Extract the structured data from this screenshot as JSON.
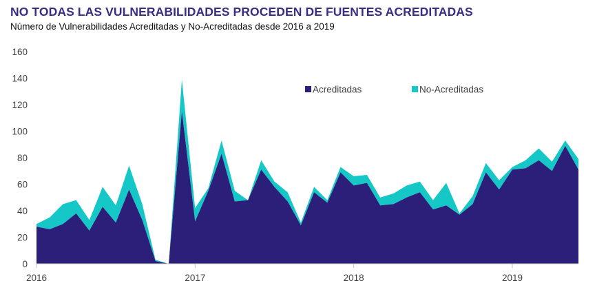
{
  "header": {
    "title": "NO TODAS LAS VULNERABILIDADES PROCEDEN DE FUENTES ACREDITADAS",
    "subtitle": "Número de Vulnerabilidades Acreditadas y No-Acreditadas desde 2016 a 2019"
  },
  "colors": {
    "accent": "#3a2d86",
    "acreditadas": "#2b1f7a",
    "no_acreditadas": "#16c7c7",
    "axis": "#bfbfbf",
    "text": "#404040"
  },
  "chart_data": {
    "type": "area",
    "stacked": true,
    "title": "NO TODAS LAS VULNERABILIDADES PROCEDEN DE FUENTES ACREDITADAS",
    "subtitle": "Número de Vulnerabilidades Acreditadas y No-Acreditadas desde 2016 a 2019",
    "xlabel": "",
    "ylabel": "",
    "ylim": [
      0,
      160
    ],
    "yticks": [
      "0",
      "20",
      "40",
      "60",
      "80",
      "100",
      "120",
      "140",
      "160"
    ],
    "xticks": [
      "2016",
      "2017",
      "2018",
      "2019"
    ],
    "grid": false,
    "legend": {
      "position": "top-right",
      "entries": [
        "Acreditadas",
        "No-Acreditadas"
      ]
    },
    "x": [
      "2016-01",
      "2016-02",
      "2016-03",
      "2016-04",
      "2016-05",
      "2016-06",
      "2016-07",
      "2016-08",
      "2016-09",
      "2016-10",
      "2016-11",
      "2016-12",
      "2017-01",
      "2017-02",
      "2017-03",
      "2017-04",
      "2017-05",
      "2017-06",
      "2017-07",
      "2017-08",
      "2017-09",
      "2017-10",
      "2017-11",
      "2017-12",
      "2018-01",
      "2018-02",
      "2018-03",
      "2018-04",
      "2018-05",
      "2018-06",
      "2018-07",
      "2018-08",
      "2018-09",
      "2018-10",
      "2018-11",
      "2018-12",
      "2019-01",
      "2019-02",
      "2019-03",
      "2019-04",
      "2019-05",
      "2019-06"
    ],
    "series": [
      {
        "name": "Acreditadas",
        "values": [
          28,
          26,
          30,
          38,
          25,
          43,
          31,
          56,
          33,
          2,
          0,
          115,
          32,
          55,
          83,
          47,
          48,
          71,
          58,
          47,
          29,
          54,
          46,
          69,
          59,
          61,
          44,
          45,
          50,
          54,
          41,
          44,
          37,
          45,
          69,
          56,
          71,
          72,
          78,
          70,
          89,
          71
        ]
      },
      {
        "name": "No-Acreditadas",
        "values": [
          2,
          9,
          15,
          10,
          8,
          15,
          13,
          18,
          12,
          1,
          0,
          24,
          10,
          2,
          10,
          8,
          0,
          7,
          4,
          7,
          2,
          4,
          2,
          4,
          7,
          6,
          6,
          8,
          9,
          8,
          7,
          17,
          1,
          6,
          7,
          7,
          2,
          6,
          9,
          7,
          4,
          8
        ]
      }
    ]
  }
}
